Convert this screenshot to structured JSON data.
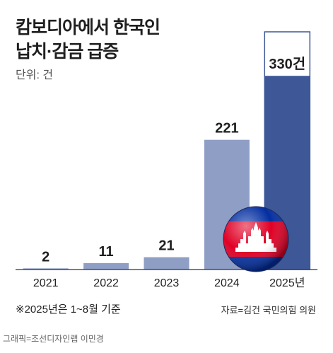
{
  "header": {
    "title_line1": "캄보디아에서 한국인",
    "title_line2": "납치·감금 급증",
    "unit": "단위: 건"
  },
  "footer": {
    "note": "※2025년은 1~8월 기준",
    "source": "자료=김건 국민의힘 의원",
    "credit": "그래픽=조선디자인랩 이민경"
  },
  "chart_data": {
    "type": "bar",
    "categories": [
      "2021",
      "2022",
      "2023",
      "2024",
      "2025년"
    ],
    "values": [
      2,
      11,
      21,
      221,
      330
    ],
    "value_labels": [
      "2",
      "11",
      "21",
      "221",
      "330건"
    ],
    "projected_full_year_outline": true,
    "ylim": [
      0,
      405
    ],
    "grid": false,
    "colors": {
      "past": "#8e9ec4",
      "current": "#3d5797",
      "outline": "#3d5797",
      "baseline": "#333333"
    }
  }
}
